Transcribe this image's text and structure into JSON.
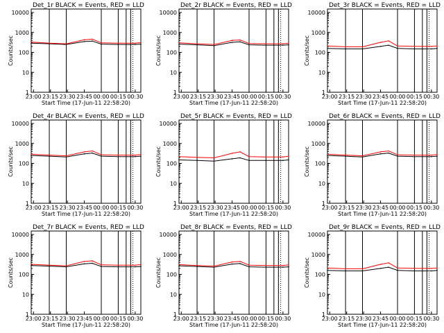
{
  "common": {
    "ylabel": "Counts/sec",
    "xlabel": "Start Time (17-Jun-11 22:58:20)",
    "xticks": [
      "23:00",
      "23:15",
      "23:30",
      "23:45",
      "00:00",
      "00:15",
      "00:30"
    ],
    "yticks": [
      "1",
      "10",
      "100",
      "1000",
      "10000"
    ],
    "colors": {
      "events": "#000000",
      "lld": "#ff0000"
    }
  },
  "chart_data": [
    {
      "type": "line",
      "title": "Det_1r BLACK = Events, RED = LLD",
      "x_minutes_from_2300": [
        -2,
        14,
        29,
        45,
        52,
        60,
        75,
        90,
        95
      ],
      "series": [
        {
          "name": "Events",
          "values": [
            290,
            270,
            250,
            350,
            370,
            260,
            250,
            250,
            260
          ]
        },
        {
          "name": "LLD",
          "values": [
            330,
            290,
            270,
            430,
            460,
            300,
            290,
            290,
            310
          ]
        }
      ],
      "xlim": [
        -2,
        95
      ],
      "ylim": [
        1,
        15000
      ],
      "yscale": "log"
    },
    {
      "type": "line",
      "title": "Det_2r BLACK = Events, RED = LLD",
      "x_minutes_from_2300": [
        -2,
        14,
        29,
        45,
        52,
        60,
        75,
        90,
        95
      ],
      "series": [
        {
          "name": "Events",
          "values": [
            260,
            240,
            220,
            320,
            340,
            240,
            230,
            230,
            240
          ]
        },
        {
          "name": "LLD",
          "values": [
            300,
            270,
            250,
            400,
            420,
            280,
            270,
            270,
            290
          ]
        }
      ],
      "xlim": [
        -2,
        95
      ],
      "ylim": [
        1,
        15000
      ],
      "yscale": "log"
    },
    {
      "type": "line",
      "title": "Det_3r BLACK = Events, RED = LLD",
      "x_minutes_from_2300": [
        -2,
        14,
        29,
        45,
        52,
        60,
        75,
        90,
        95
      ],
      "series": [
        {
          "name": "Events",
          "values": [
            160,
            150,
            150,
            200,
            230,
            160,
            150,
            150,
            160
          ]
        },
        {
          "name": "LLD",
          "values": [
            210,
            190,
            190,
            320,
            380,
            210,
            200,
            200,
            210
          ]
        }
      ],
      "xlim": [
        -2,
        95
      ],
      "ylim": [
        1,
        15000
      ],
      "yscale": "log"
    },
    {
      "type": "line",
      "title": "Det_4r BLACK = Events, RED = LLD",
      "x_minutes_from_2300": [
        -2,
        14,
        29,
        45,
        52,
        60,
        75,
        90,
        95
      ],
      "series": [
        {
          "name": "Events",
          "values": [
            250,
            230,
            210,
            300,
            330,
            230,
            220,
            220,
            230
          ]
        },
        {
          "name": "LLD",
          "values": [
            290,
            260,
            240,
            380,
            420,
            270,
            260,
            260,
            280
          ]
        }
      ],
      "xlim": [
        -2,
        95
      ],
      "ylim": [
        1,
        15000
      ],
      "yscale": "log"
    },
    {
      "type": "line",
      "title": "Det_5r BLACK = Events, RED = LLD",
      "x_minutes_from_2300": [
        -2,
        14,
        29,
        45,
        52,
        60,
        75,
        90,
        95
      ],
      "series": [
        {
          "name": "Events",
          "values": [
            150,
            140,
            130,
            170,
            190,
            140,
            140,
            140,
            150
          ]
        },
        {
          "name": "LLD",
          "values": [
            220,
            200,
            190,
            320,
            380,
            220,
            210,
            210,
            230
          ]
        }
      ],
      "xlim": [
        -2,
        95
      ],
      "ylim": [
        1,
        15000
      ],
      "yscale": "log"
    },
    {
      "type": "line",
      "title": "Det_6r BLACK = Events, RED = LLD",
      "x_minutes_from_2300": [
        -2,
        14,
        29,
        45,
        52,
        60,
        75,
        90,
        95
      ],
      "series": [
        {
          "name": "Events",
          "values": [
            250,
            230,
            210,
            300,
            330,
            230,
            220,
            220,
            230
          ]
        },
        {
          "name": "LLD",
          "values": [
            290,
            260,
            240,
            380,
            420,
            270,
            260,
            260,
            280
          ]
        }
      ],
      "xlim": [
        -2,
        95
      ],
      "ylim": [
        1,
        15000
      ],
      "yscale": "log"
    },
    {
      "type": "line",
      "title": "Det_7r BLACK = Events, RED = LLD",
      "x_minutes_from_2300": [
        -2,
        14,
        29,
        45,
        52,
        60,
        75,
        90,
        95
      ],
      "series": [
        {
          "name": "Events",
          "values": [
            280,
            260,
            240,
            340,
            360,
            250,
            240,
            240,
            250
          ]
        },
        {
          "name": "LLD",
          "values": [
            320,
            290,
            270,
            450,
            480,
            300,
            290,
            290,
            310
          ]
        }
      ],
      "xlim": [
        -2,
        95
      ],
      "ylim": [
        1,
        15000
      ],
      "yscale": "log"
    },
    {
      "type": "line",
      "title": "Det_8r BLACK = Events, RED = LLD",
      "x_minutes_from_2300": [
        -2,
        14,
        29,
        45,
        52,
        60,
        75,
        90,
        95
      ],
      "series": [
        {
          "name": "Events",
          "values": [
            270,
            250,
            230,
            330,
            350,
            240,
            230,
            230,
            240
          ]
        },
        {
          "name": "LLD",
          "values": [
            310,
            280,
            260,
            420,
            450,
            290,
            280,
            280,
            300
          ]
        }
      ],
      "xlim": [
        -2,
        95
      ],
      "ylim": [
        1,
        15000
      ],
      "yscale": "log"
    },
    {
      "type": "line",
      "title": "Det_9r BLACK = Events, RED = LLD",
      "x_minutes_from_2300": [
        -2,
        14,
        29,
        45,
        52,
        60,
        75,
        90,
        95
      ],
      "series": [
        {
          "name": "Events",
          "values": [
            160,
            150,
            150,
            200,
            230,
            160,
            150,
            150,
            160
          ]
        },
        {
          "name": "LLD",
          "values": [
            210,
            190,
            190,
            320,
            380,
            210,
            200,
            200,
            210
          ]
        }
      ],
      "xlim": [
        -2,
        95
      ],
      "ylim": [
        1,
        15000
      ],
      "yscale": "log"
    }
  ]
}
